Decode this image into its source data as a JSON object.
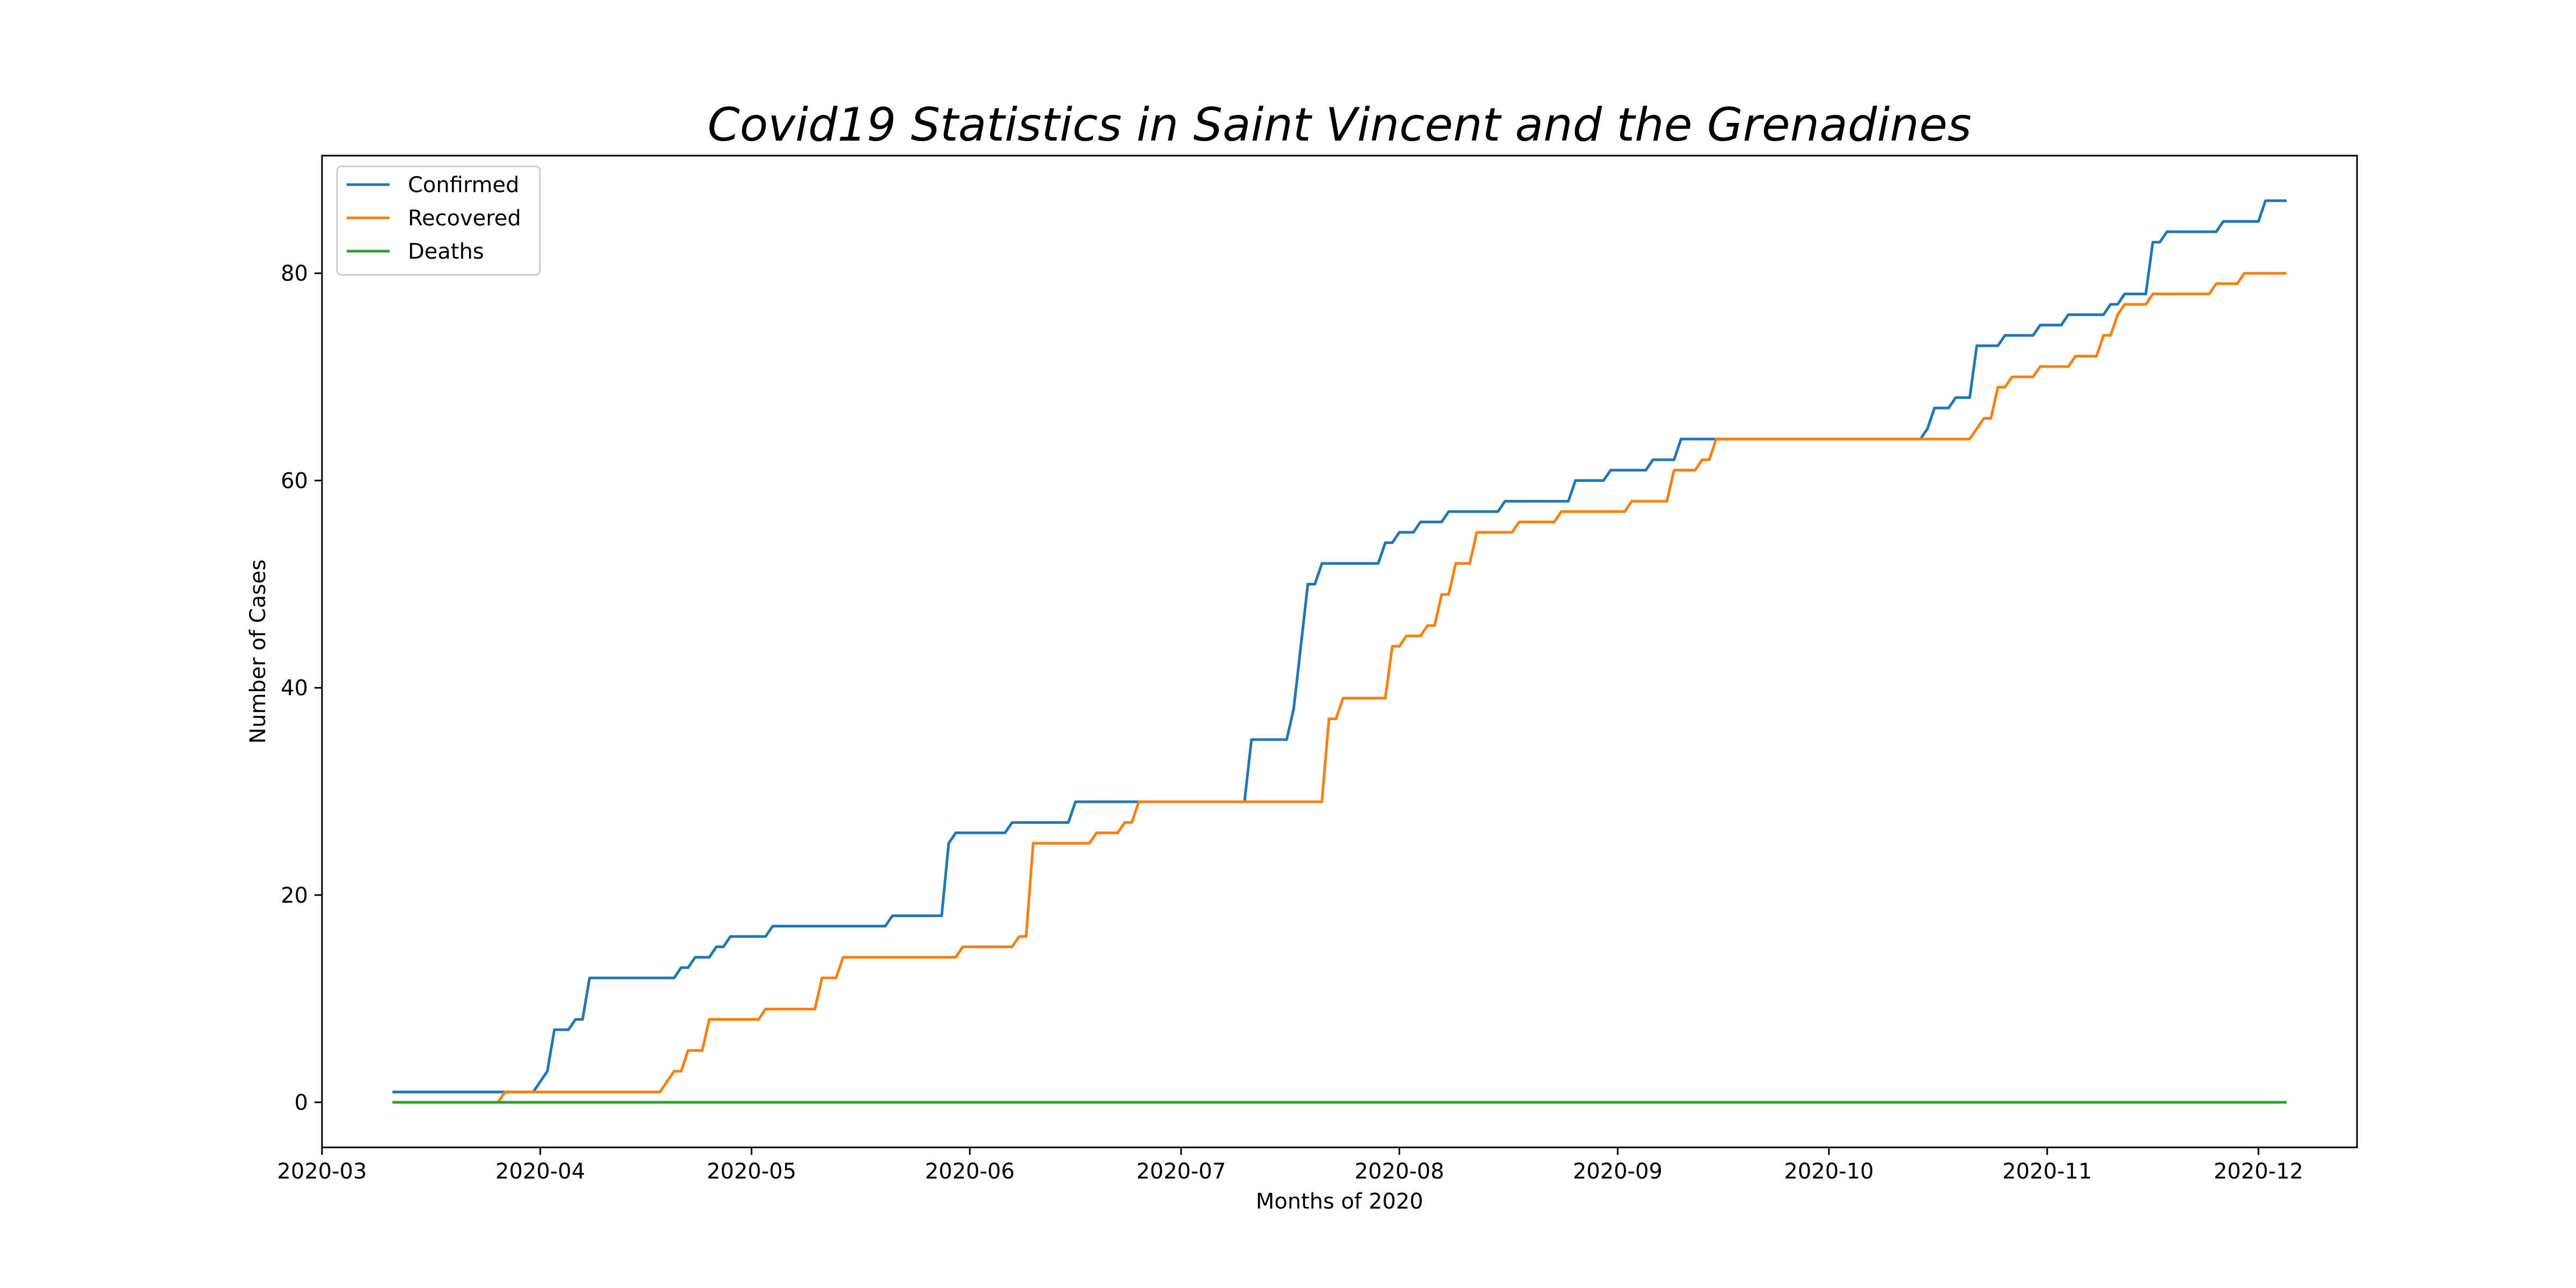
{
  "chart_data": {
    "type": "line",
    "title": "Covid19 Statistics in Saint Vincent and the Grenadines",
    "xlabel": "Months of 2020",
    "ylabel": "Number of Cases",
    "xlim": [
      "2020-03-01",
      "2020-12-15"
    ],
    "ylim": [
      -4.35,
      91.35
    ],
    "grid": false,
    "legend_position": "upper left",
    "x_ticks": [
      "2020-03",
      "2020-04",
      "2020-05",
      "2020-06",
      "2020-07",
      "2020-08",
      "2020-09",
      "2020-10",
      "2020-11",
      "2020-12"
    ],
    "y_ticks": [
      0,
      20,
      40,
      60,
      80
    ],
    "series": [
      {
        "name": "Confirmed",
        "color": "#1f77b4",
        "points": [
          [
            "2020-03-11",
            1
          ],
          [
            "2020-03-31",
            1
          ],
          [
            "2020-04-02",
            3
          ],
          [
            "2020-04-03",
            7
          ],
          [
            "2020-04-05",
            7
          ],
          [
            "2020-04-06",
            8
          ],
          [
            "2020-04-07",
            8
          ],
          [
            "2020-04-08",
            12
          ],
          [
            "2020-04-20",
            12
          ],
          [
            "2020-04-21",
            13
          ],
          [
            "2020-04-22",
            13
          ],
          [
            "2020-04-23",
            14
          ],
          [
            "2020-04-25",
            14
          ],
          [
            "2020-04-26",
            15
          ],
          [
            "2020-04-27",
            15
          ],
          [
            "2020-04-28",
            16
          ],
          [
            "2020-05-03",
            16
          ],
          [
            "2020-05-04",
            17
          ],
          [
            "2020-05-20",
            17
          ],
          [
            "2020-05-21",
            18
          ],
          [
            "2020-05-28",
            18
          ],
          [
            "2020-05-29",
            25
          ],
          [
            "2020-05-30",
            26
          ],
          [
            "2020-06-06",
            26
          ],
          [
            "2020-06-07",
            27
          ],
          [
            "2020-06-15",
            27
          ],
          [
            "2020-06-16",
            29
          ],
          [
            "2020-07-10",
            29
          ],
          [
            "2020-07-11",
            35
          ],
          [
            "2020-07-16",
            35
          ],
          [
            "2020-07-17",
            38
          ],
          [
            "2020-07-19",
            50
          ],
          [
            "2020-07-20",
            50
          ],
          [
            "2020-07-21",
            52
          ],
          [
            "2020-07-29",
            52
          ],
          [
            "2020-07-30",
            54
          ],
          [
            "2020-07-31",
            54
          ],
          [
            "2020-08-01",
            55
          ],
          [
            "2020-08-03",
            55
          ],
          [
            "2020-08-04",
            56
          ],
          [
            "2020-08-07",
            56
          ],
          [
            "2020-08-08",
            57
          ],
          [
            "2020-08-15",
            57
          ],
          [
            "2020-08-16",
            58
          ],
          [
            "2020-08-25",
            58
          ],
          [
            "2020-08-26",
            60
          ],
          [
            "2020-08-30",
            60
          ],
          [
            "2020-08-31",
            61
          ],
          [
            "2020-09-05",
            61
          ],
          [
            "2020-09-06",
            62
          ],
          [
            "2020-09-09",
            62
          ],
          [
            "2020-09-10",
            64
          ],
          [
            "2020-10-14",
            64
          ],
          [
            "2020-10-15",
            65
          ],
          [
            "2020-10-16",
            67
          ],
          [
            "2020-10-18",
            67
          ],
          [
            "2020-10-19",
            68
          ],
          [
            "2020-10-21",
            68
          ],
          [
            "2020-10-22",
            73
          ],
          [
            "2020-10-25",
            73
          ],
          [
            "2020-10-26",
            74
          ],
          [
            "2020-10-30",
            74
          ],
          [
            "2020-10-31",
            75
          ],
          [
            "2020-11-03",
            75
          ],
          [
            "2020-11-04",
            76
          ],
          [
            "2020-11-09",
            76
          ],
          [
            "2020-11-10",
            77
          ],
          [
            "2020-11-11",
            77
          ],
          [
            "2020-11-12",
            78
          ],
          [
            "2020-11-15",
            78
          ],
          [
            "2020-11-16",
            83
          ],
          [
            "2020-11-17",
            83
          ],
          [
            "2020-11-18",
            84
          ],
          [
            "2020-11-25",
            84
          ],
          [
            "2020-11-26",
            85
          ],
          [
            "2020-12-01",
            85
          ],
          [
            "2020-12-02",
            87
          ],
          [
            "2020-12-05",
            87
          ]
        ]
      },
      {
        "name": "Recovered",
        "color": "#ff7f0e",
        "points": [
          [
            "2020-03-11",
            0
          ],
          [
            "2020-03-26",
            0
          ],
          [
            "2020-03-27",
            1
          ],
          [
            "2020-04-18",
            1
          ],
          [
            "2020-04-19",
            2
          ],
          [
            "2020-04-20",
            3
          ],
          [
            "2020-04-21",
            3
          ],
          [
            "2020-04-22",
            5
          ],
          [
            "2020-04-24",
            5
          ],
          [
            "2020-04-25",
            8
          ],
          [
            "2020-05-02",
            8
          ],
          [
            "2020-05-03",
            9
          ],
          [
            "2020-05-10",
            9
          ],
          [
            "2020-05-11",
            12
          ],
          [
            "2020-05-13",
            12
          ],
          [
            "2020-05-14",
            14
          ],
          [
            "2020-05-30",
            14
          ],
          [
            "2020-05-31",
            15
          ],
          [
            "2020-06-07",
            15
          ],
          [
            "2020-06-08",
            16
          ],
          [
            "2020-06-09",
            16
          ],
          [
            "2020-06-10",
            25
          ],
          [
            "2020-06-18",
            25
          ],
          [
            "2020-06-19",
            26
          ],
          [
            "2020-06-22",
            26
          ],
          [
            "2020-06-23",
            27
          ],
          [
            "2020-06-24",
            27
          ],
          [
            "2020-06-25",
            29
          ],
          [
            "2020-07-21",
            29
          ],
          [
            "2020-07-22",
            37
          ],
          [
            "2020-07-23",
            37
          ],
          [
            "2020-07-24",
            39
          ],
          [
            "2020-07-30",
            39
          ],
          [
            "2020-07-31",
            44
          ],
          [
            "2020-08-01",
            44
          ],
          [
            "2020-08-02",
            45
          ],
          [
            "2020-08-04",
            45
          ],
          [
            "2020-08-05",
            46
          ],
          [
            "2020-08-06",
            46
          ],
          [
            "2020-08-07",
            49
          ],
          [
            "2020-08-08",
            49
          ],
          [
            "2020-08-09",
            52
          ],
          [
            "2020-08-11",
            52
          ],
          [
            "2020-08-12",
            55
          ],
          [
            "2020-08-17",
            55
          ],
          [
            "2020-08-18",
            56
          ],
          [
            "2020-08-23",
            56
          ],
          [
            "2020-08-24",
            57
          ],
          [
            "2020-09-02",
            57
          ],
          [
            "2020-09-03",
            58
          ],
          [
            "2020-09-08",
            58
          ],
          [
            "2020-09-09",
            61
          ],
          [
            "2020-09-12",
            61
          ],
          [
            "2020-09-13",
            62
          ],
          [
            "2020-09-14",
            62
          ],
          [
            "2020-09-15",
            64
          ],
          [
            "2020-10-21",
            64
          ],
          [
            "2020-10-22",
            65
          ],
          [
            "2020-10-23",
            66
          ],
          [
            "2020-10-24",
            66
          ],
          [
            "2020-10-25",
            69
          ],
          [
            "2020-10-26",
            69
          ],
          [
            "2020-10-27",
            70
          ],
          [
            "2020-10-30",
            70
          ],
          [
            "2020-10-31",
            71
          ],
          [
            "2020-11-04",
            71
          ],
          [
            "2020-11-05",
            72
          ],
          [
            "2020-11-08",
            72
          ],
          [
            "2020-11-09",
            74
          ],
          [
            "2020-11-10",
            74
          ],
          [
            "2020-11-11",
            76
          ],
          [
            "2020-11-12",
            77
          ],
          [
            "2020-11-15",
            77
          ],
          [
            "2020-11-16",
            78
          ],
          [
            "2020-11-24",
            78
          ],
          [
            "2020-11-25",
            79
          ],
          [
            "2020-11-28",
            79
          ],
          [
            "2020-11-29",
            80
          ],
          [
            "2020-12-05",
            80
          ]
        ]
      },
      {
        "name": "Deaths",
        "color": "#2ca02c",
        "points": [
          [
            "2020-03-11",
            0
          ],
          [
            "2020-12-05",
            0
          ]
        ]
      }
    ]
  }
}
